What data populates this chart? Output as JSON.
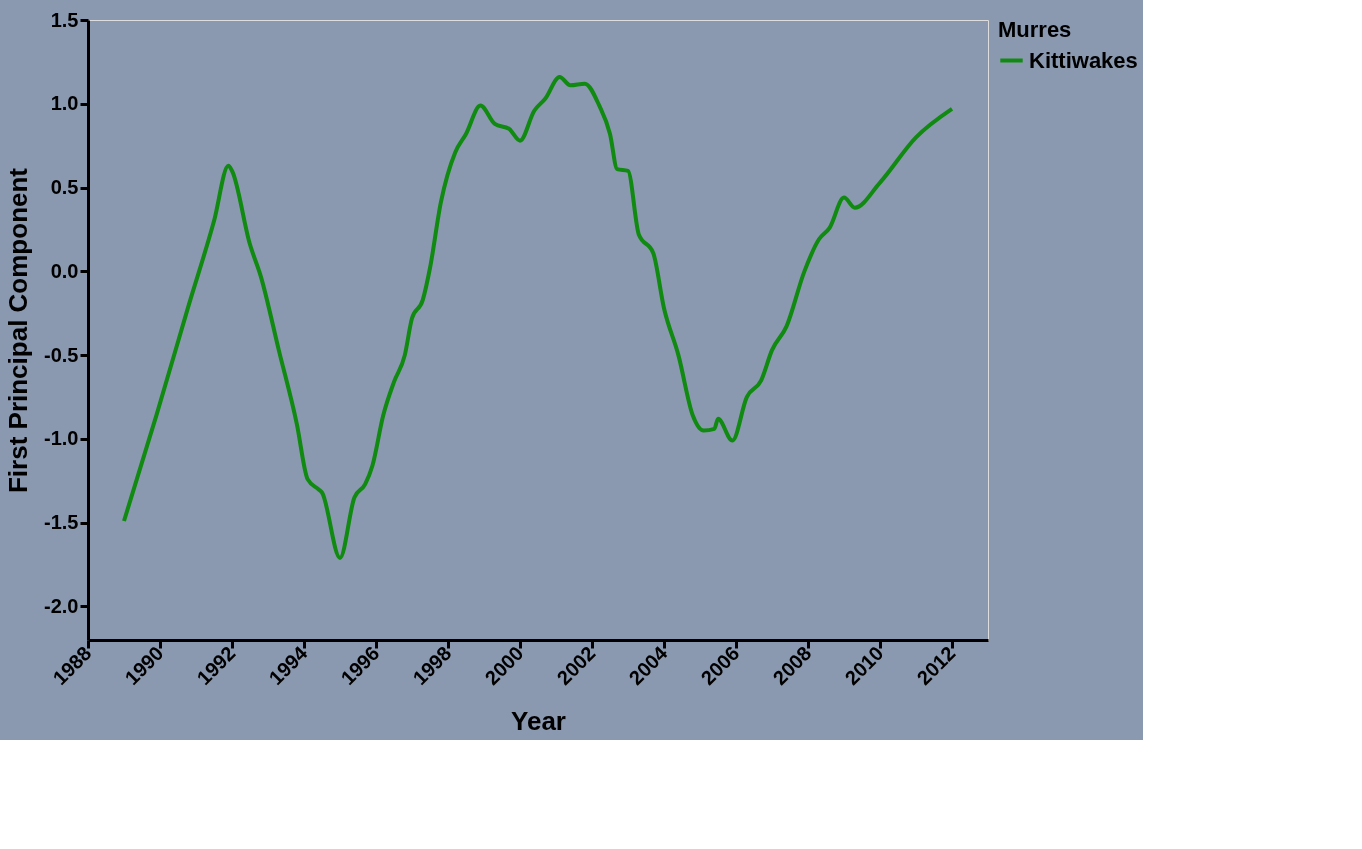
{
  "chart_data": {
    "type": "line",
    "xlabel": "Year",
    "ylabel": "First Principal Component",
    "legend_title": "Murres",
    "legend": "right",
    "xlim": [
      1988,
      2013
    ],
    "xticks": [
      1988,
      1990,
      1992,
      1994,
      1996,
      1998,
      2000,
      2002,
      2004,
      2006,
      2008,
      2010,
      2012
    ],
    "ylim": [
      -2.2,
      1.5
    ],
    "yticks": [
      {
        "value": 1.5,
        "label": "1.5"
      },
      {
        "value": 1,
        "label": "1.0"
      },
      {
        "value": 0.5,
        "label": "0.5"
      },
      {
        "value": 0,
        "label": "0.0"
      },
      {
        "value": -0.5,
        "label": "-0.5"
      },
      {
        "value": -1,
        "label": "-1.0"
      },
      {
        "value": -1.5,
        "label": "-1.5"
      },
      {
        "value": -2,
        "label": "-2.0"
      }
    ],
    "grid": false,
    "marker": "none",
    "line_style": "solid",
    "series": [
      {
        "name": "Kittiwakes",
        "color": "#108a10",
        "x": [
          1989.0,
          1989.9,
          1990.8,
          1991.5,
          1991.9,
          1992.0,
          1992.5,
          1992.8,
          1993.3,
          1993.8,
          1994.1,
          1994.4,
          1994.5,
          1995.0,
          1995.4,
          1995.7,
          1995.9,
          1996.2,
          1996.5,
          1996.8,
          1997.0,
          1997.3,
          1997.5,
          1997.8,
          1998.2,
          1998.5,
          1998.9,
          1999.3,
          1999.7,
          2000.0,
          2000.4,
          2000.7,
          2001.1,
          2001.4,
          2001.8,
          2002.2,
          2002.5,
          2002.7,
          2003.0,
          2003.3,
          2003.7,
          2004.0,
          2004.4,
          2004.8,
          2005.1,
          2005.4,
          2005.5,
          2005.9,
          2006.3,
          2006.7,
          2007.0,
          2007.4,
          2007.9,
          2008.3,
          2008.6,
          2009.0,
          2009.3,
          2010.0,
          2011.0,
          2012.0
        ],
        "values": [
          -1.49,
          -0.86,
          -0.2,
          0.3,
          0.63,
          0.6,
          0.16,
          -0.03,
          -0.47,
          -0.91,
          -1.24,
          -1.3,
          -1.32,
          -1.71,
          -1.35,
          -1.27,
          -1.16,
          -0.86,
          -0.66,
          -0.5,
          -0.28,
          -0.17,
          0.02,
          0.41,
          0.71,
          0.82,
          0.99,
          0.88,
          0.85,
          0.78,
          0.96,
          1.03,
          1.16,
          1.11,
          1.12,
          0.99,
          0.82,
          0.61,
          0.6,
          0.22,
          0.11,
          -0.22,
          -0.5,
          -0.86,
          -0.95,
          -0.94,
          -0.88,
          -1.01,
          -0.75,
          -0.65,
          -0.47,
          -0.33,
          0.0,
          0.19,
          0.26,
          0.44,
          0.38,
          0.53,
          0.8,
          0.97
        ]
      }
    ]
  }
}
